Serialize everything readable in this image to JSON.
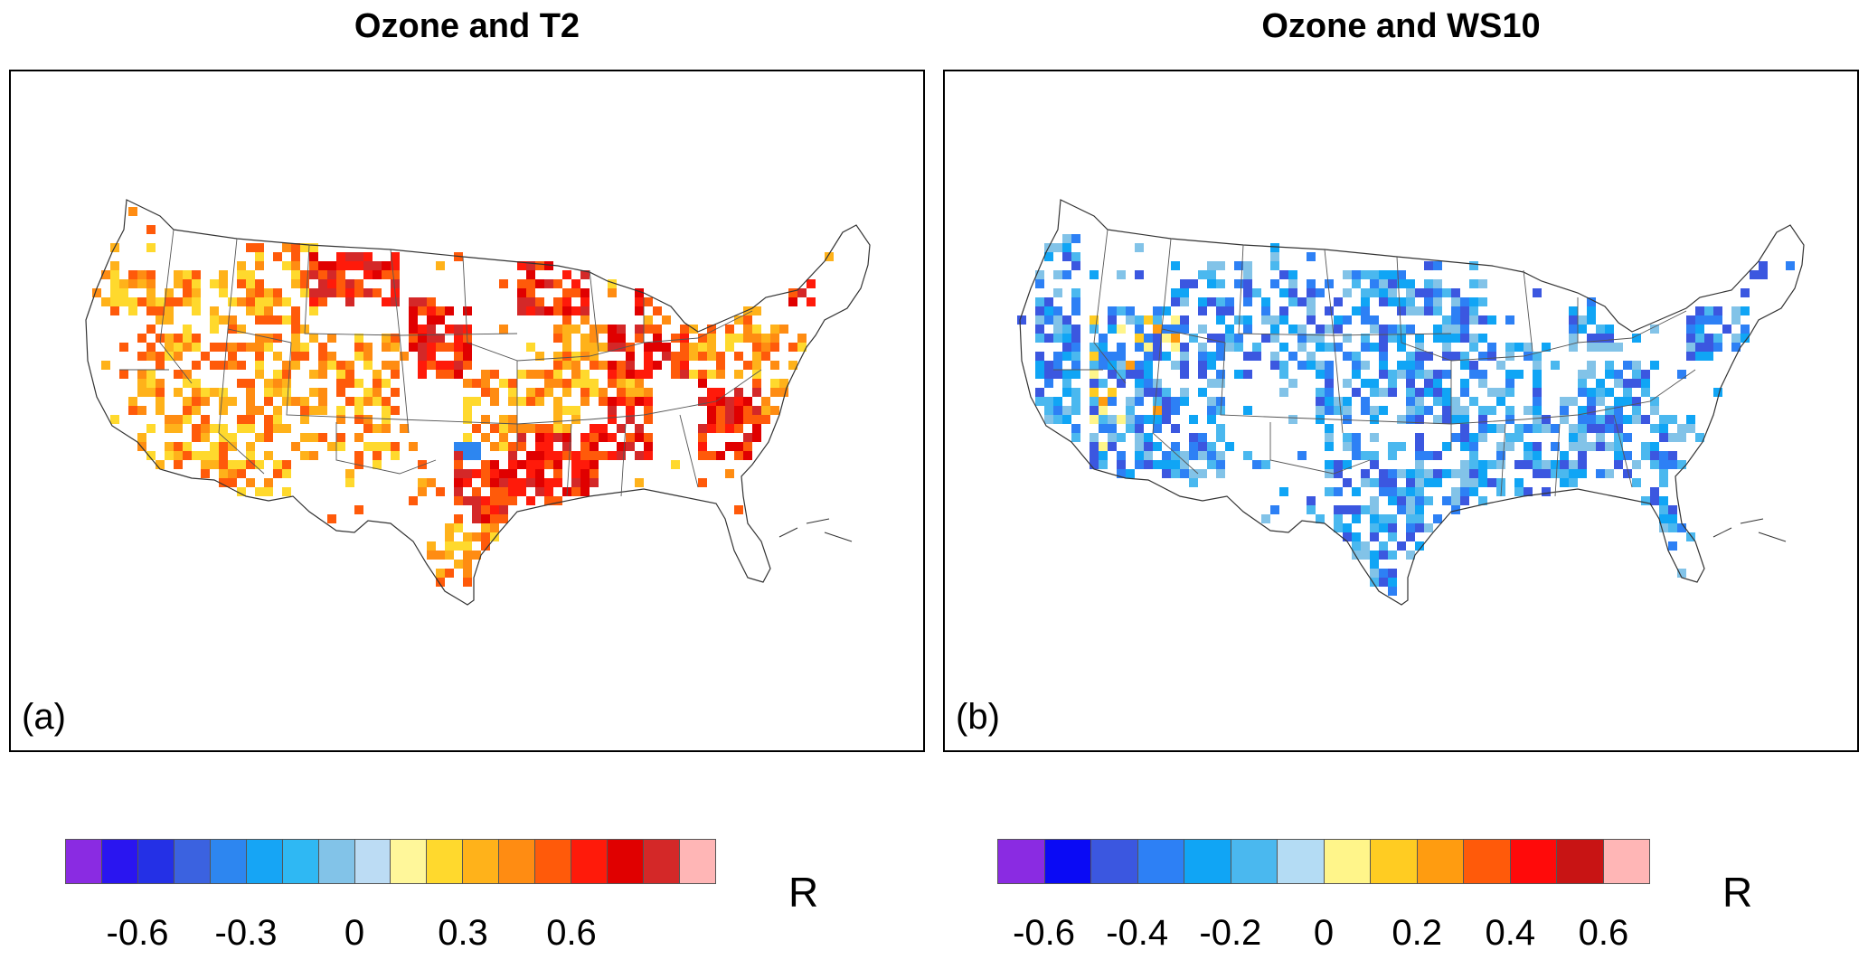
{
  "panels": [
    {
      "title": "Ozone and T2",
      "label": "(a)",
      "colorbar": {
        "unit": "R",
        "colors": [
          "#8a2be2",
          "#2a15f0",
          "#2430e6",
          "#3b62e0",
          "#2d86f0",
          "#16a5f5",
          "#2fb8f3",
          "#82c3e8",
          "#bcdcf4",
          "#fff79a",
          "#ffd92d",
          "#ffb21a",
          "#ff8c12",
          "#ff5a0a",
          "#ff1a0a",
          "#e00000",
          "#d42828",
          "#ffb6b6"
        ],
        "tick_labels": [
          "-0.6",
          "-0.3",
          "0",
          "0.3",
          "0.6"
        ],
        "tick_boundaries": [
          2,
          5,
          8,
          11,
          14
        ]
      }
    },
    {
      "title": "Ozone and WS10",
      "label": "(b)",
      "colorbar": {
        "unit": "R",
        "colors": [
          "#8a2be2",
          "#0a0af5",
          "#3b57e0",
          "#2d80f5",
          "#10a5f5",
          "#4ab8ef",
          "#b4dcf4",
          "#fff58a",
          "#ffcc22",
          "#ff9c10",
          "#ff5a0a",
          "#ff0a0a",
          "#c81414",
          "#ffb6b6"
        ],
        "tick_labels": [
          "-0.6",
          "-0.4",
          "-0.2",
          "0",
          "0.2",
          "0.4",
          "0.6"
        ],
        "tick_boundaries": [
          1,
          3,
          5,
          7,
          9,
          11,
          13
        ]
      }
    }
  ]
}
